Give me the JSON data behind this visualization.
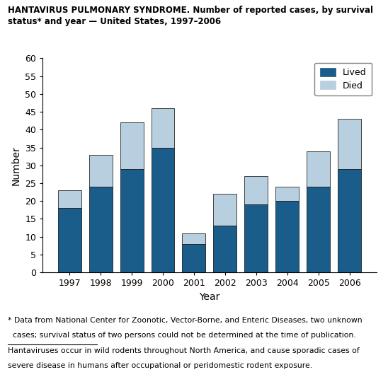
{
  "years": [
    1997,
    1998,
    1999,
    2000,
    2001,
    2002,
    2003,
    2004,
    2005,
    2006
  ],
  "lived": [
    18,
    24,
    29,
    35,
    8,
    13,
    19,
    20,
    24,
    29
  ],
  "died": [
    5,
    9,
    13,
    11,
    3,
    9,
    8,
    4,
    10,
    14
  ],
  "color_lived": "#1a5c8a",
  "color_died": "#b8cfe0",
  "title_line1": "HANTAVIRUS PULMONARY SYNDROME. Number of reported cases, by survival",
  "title_line2": "status* and year — United States, 1997–2006",
  "xlabel": "Year",
  "ylabel": "Number",
  "ylim": [
    0,
    60
  ],
  "yticks": [
    0,
    5,
    10,
    15,
    20,
    25,
    30,
    35,
    40,
    45,
    50,
    55,
    60
  ],
  "footnote1_line1": "* Data from National Center for Zoonotic, Vector-Borne, and Enteric Diseases, two unknown",
  "footnote1_line2": "  cases; survival status of two persons could not be determined at the time of publication.",
  "footnote2_line1": "Hantaviruses occur in wild rodents throughout North America, and cause sporadic cases of",
  "footnote2_line2": "severe disease in humans after occupational or peridomestic rodent exposure.",
  "legend_lived": "Lived",
  "legend_died": "Died",
  "title_fontsize": 8.5,
  "axis_fontsize": 9,
  "footnote_fontsize": 7.8
}
